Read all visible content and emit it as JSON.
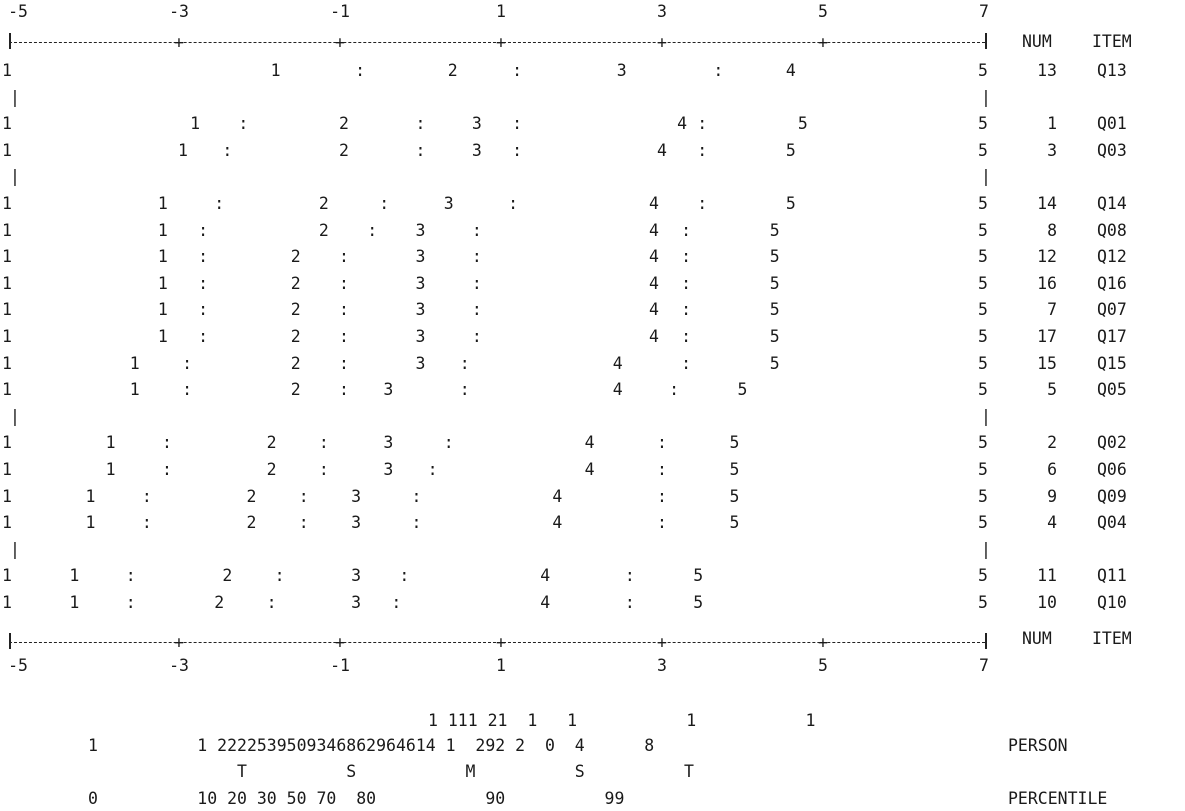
{
  "axis_ticks": [
    "-5",
    "-3",
    "-1",
    "1",
    "3",
    "5",
    "7"
  ],
  "header": {
    "num": "NUM",
    "item": "ITEM"
  },
  "footer": {
    "num": "NUM",
    "item": "ITEM"
  },
  "boundary": {
    "low": "1",
    "high": "5",
    "sep": ":"
  },
  "rows": [
    {
      "num": "13",
      "item": "Q13",
      "cats": [
        -1.8,
        0.4,
        2.5,
        4.6
      ],
      "thr": [
        -0.75,
        1.2,
        3.7
      ]
    },
    {
      "spacer": true
    },
    {
      "num": "1",
      "item": "Q01",
      "cats": [
        -2.8,
        -0.95,
        0.7,
        3.25,
        "5@4.75"
      ],
      "thr": [
        -2.2,
        0.0,
        1.2,
        3.5
      ]
    },
    {
      "num": "3",
      "item": "Q03",
      "cats": [
        -2.95,
        -0.95,
        0.7,
        3.0,
        "5@4.6"
      ],
      "thr": [
        -2.4,
        0.0,
        1.2,
        3.5
      ]
    },
    {
      "spacer": true
    },
    {
      "num": "14",
      "item": "Q14",
      "cats": [
        -3.2,
        -1.2,
        0.35,
        2.9,
        "5@4.6"
      ],
      "thr": [
        -2.5,
        -0.45,
        1.15,
        3.5
      ]
    },
    {
      "num": "8",
      "item": "Q08",
      "cats": [
        -3.2,
        -1.2,
        0.0,
        2.9,
        "5@4.4"
      ],
      "thr": [
        -2.7,
        -0.6,
        0.7,
        3.3
      ]
    },
    {
      "num": "12",
      "item": "Q12",
      "cats": [
        -3.2,
        -1.55,
        0.0,
        2.9,
        "5@4.4"
      ],
      "thr": [
        -2.7,
        -0.95,
        0.7,
        3.3
      ]
    },
    {
      "num": "16",
      "item": "Q16",
      "cats": [
        -3.2,
        -1.55,
        0.0,
        2.9,
        "5@4.4"
      ],
      "thr": [
        -2.7,
        -0.95,
        0.7,
        3.3
      ]
    },
    {
      "num": "7",
      "item": "Q07",
      "cats": [
        -3.2,
        -1.55,
        0.0,
        2.9,
        "5@4.4"
      ],
      "thr": [
        -2.7,
        -0.95,
        0.7,
        3.3
      ]
    },
    {
      "num": "17",
      "item": "Q17",
      "cats": [
        -3.2,
        -1.55,
        0.0,
        2.9,
        "5@4.4"
      ],
      "thr": [
        -2.7,
        -0.95,
        0.7,
        3.3
      ]
    },
    {
      "num": "15",
      "item": "Q15",
      "cats": [
        -3.55,
        -1.55,
        0.0,
        2.45,
        "5@4.4"
      ],
      "thr": [
        -2.9,
        -0.95,
        0.55,
        3.3
      ]
    },
    {
      "num": "5",
      "item": "Q05",
      "cats": [
        -3.55,
        -1.55,
        -0.4,
        2.45,
        "5@4.0"
      ],
      "thr": [
        -2.9,
        -0.95,
        0.55,
        3.15
      ]
    },
    {
      "spacer": true
    },
    {
      "num": "2",
      "item": "Q02",
      "cats": [
        -3.85,
        -1.85,
        -0.4,
        2.1,
        "5@3.9"
      ],
      "thr": [
        -3.15,
        -1.2,
        0.35,
        3.0
      ]
    },
    {
      "num": "6",
      "item": "Q06",
      "cats": [
        -3.85,
        -1.85,
        -0.4,
        2.1,
        "5@3.9"
      ],
      "thr": [
        -3.15,
        -1.2,
        0.15,
        3.0
      ]
    },
    {
      "num": "9",
      "item": "Q09",
      "cats": [
        -4.1,
        -2.1,
        -0.8,
        1.7,
        "5@3.9"
      ],
      "thr": [
        -3.4,
        -1.45,
        -0.05,
        3.0
      ]
    },
    {
      "num": "4",
      "item": "Q04",
      "cats": [
        -4.1,
        -2.1,
        -0.8,
        1.7,
        "5@3.9"
      ],
      "thr": [
        -3.4,
        -1.45,
        -0.05,
        3.0
      ]
    },
    {
      "spacer": true
    },
    {
      "num": "11",
      "item": "Q11",
      "cats": [
        -4.3,
        -2.4,
        -0.8,
        1.55,
        "5@3.45"
      ],
      "thr": [
        -3.6,
        -1.75,
        -0.2,
        2.6
      ]
    },
    {
      "num": "10",
      "item": "Q10",
      "cats": [
        -4.3,
        -2.5,
        -0.8,
        1.55,
        "5@3.45"
      ],
      "thr": [
        -3.6,
        -1.85,
        -0.3,
        2.6
      ]
    }
  ],
  "person_dist": {
    "line1": "1 111 21  1   1           1           1",
    "line2": "1          1 2222539509346862964614 1  292 2  0  4      8",
    "label": "PERSON",
    "markers": "T          S           M          S          T",
    "percentiles": "0          10 20 30 50 70  80           90          99",
    "pct_label": "PERCENTILE"
  }
}
